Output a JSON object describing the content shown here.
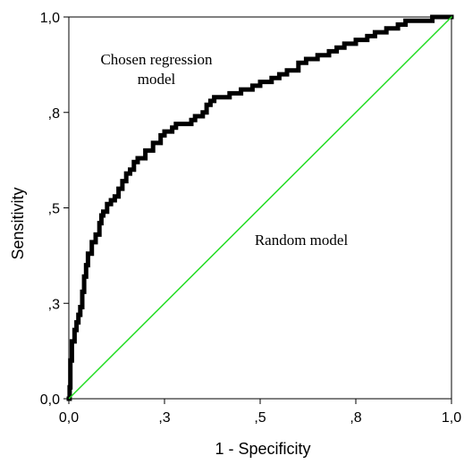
{
  "chart_data": {
    "type": "line",
    "title": "",
    "xlabel": "1 - Specificity",
    "ylabel": "Sensitivity",
    "xlim": [
      0,
      1
    ],
    "ylim": [
      0,
      1
    ],
    "x_ticks": [
      {
        "value": 0.0,
        "label": "0,0"
      },
      {
        "value": 0.25,
        "label": ",3"
      },
      {
        "value": 0.5,
        "label": ",5"
      },
      {
        "value": 0.75,
        "label": ",8"
      },
      {
        "value": 1.0,
        "label": "1,0"
      }
    ],
    "y_ticks": [
      {
        "value": 0.0,
        "label": "0,0"
      },
      {
        "value": 0.25,
        "label": ",3"
      },
      {
        "value": 0.5,
        "label": ",5"
      },
      {
        "value": 0.75,
        "label": ",8"
      },
      {
        "value": 1.0,
        "label": "1,0"
      }
    ],
    "grid": false,
    "series": [
      {
        "color": "#000000",
        "style": "step",
        "points": [
          [
            0.0,
            0.0
          ],
          [
            0.002,
            0.03
          ],
          [
            0.004,
            0.1
          ],
          [
            0.008,
            0.15
          ],
          [
            0.015,
            0.18
          ],
          [
            0.02,
            0.2
          ],
          [
            0.025,
            0.22
          ],
          [
            0.03,
            0.24
          ],
          [
            0.035,
            0.28
          ],
          [
            0.04,
            0.32
          ],
          [
            0.045,
            0.35
          ],
          [
            0.05,
            0.38
          ],
          [
            0.06,
            0.41
          ],
          [
            0.07,
            0.43
          ],
          [
            0.08,
            0.46
          ],
          [
            0.085,
            0.48
          ],
          [
            0.09,
            0.49
          ],
          [
            0.1,
            0.51
          ],
          [
            0.11,
            0.52
          ],
          [
            0.12,
            0.53
          ],
          [
            0.13,
            0.55
          ],
          [
            0.14,
            0.57
          ],
          [
            0.15,
            0.59
          ],
          [
            0.16,
            0.6
          ],
          [
            0.17,
            0.62
          ],
          [
            0.18,
            0.63
          ],
          [
            0.2,
            0.65
          ],
          [
            0.22,
            0.67
          ],
          [
            0.24,
            0.69
          ],
          [
            0.25,
            0.7
          ],
          [
            0.27,
            0.71
          ],
          [
            0.28,
            0.72
          ],
          [
            0.3,
            0.72
          ],
          [
            0.32,
            0.73
          ],
          [
            0.33,
            0.74
          ],
          [
            0.35,
            0.75
          ],
          [
            0.36,
            0.77
          ],
          [
            0.37,
            0.78
          ],
          [
            0.38,
            0.79
          ],
          [
            0.4,
            0.79
          ],
          [
            0.42,
            0.8
          ],
          [
            0.44,
            0.8
          ],
          [
            0.45,
            0.81
          ],
          [
            0.47,
            0.81
          ],
          [
            0.48,
            0.82
          ],
          [
            0.5,
            0.83
          ],
          [
            0.53,
            0.84
          ],
          [
            0.55,
            0.85
          ],
          [
            0.57,
            0.86
          ],
          [
            0.6,
            0.88
          ],
          [
            0.62,
            0.89
          ],
          [
            0.65,
            0.9
          ],
          [
            0.68,
            0.91
          ],
          [
            0.7,
            0.92
          ],
          [
            0.72,
            0.93
          ],
          [
            0.75,
            0.94
          ],
          [
            0.78,
            0.95
          ],
          [
            0.8,
            0.96
          ],
          [
            0.83,
            0.97
          ],
          [
            0.86,
            0.98
          ],
          [
            0.88,
            0.99
          ],
          [
            0.9,
            0.99
          ],
          [
            0.95,
            1.0
          ],
          [
            1.0,
            1.0
          ]
        ]
      },
      {
        "color": "#22dd22",
        "style": "line",
        "points": [
          [
            0,
            0
          ],
          [
            1,
            1
          ]
        ]
      }
    ],
    "annotations": [
      {
        "id": "chosen",
        "lines": [
          "Chosen regression",
          "model"
        ]
      },
      {
        "id": "random",
        "lines": [
          "Random model"
        ]
      }
    ]
  }
}
